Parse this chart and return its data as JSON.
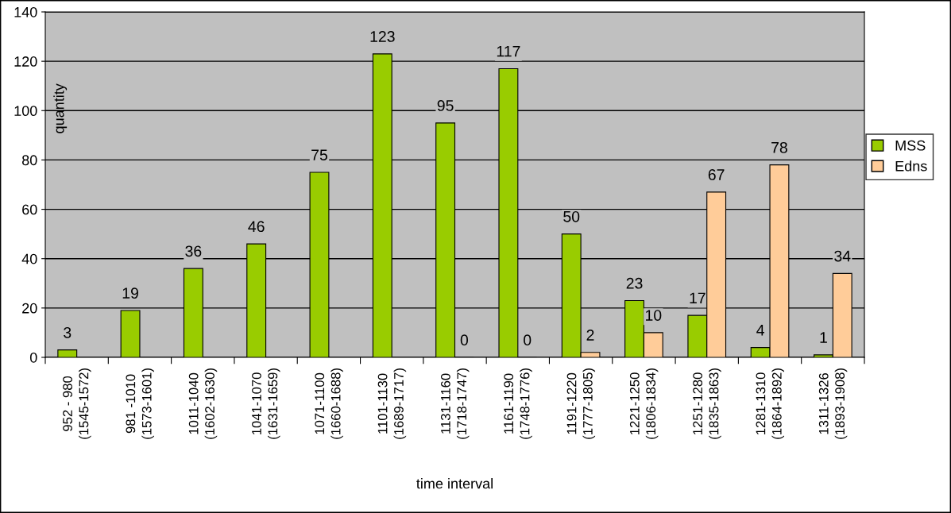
{
  "chart_data": {
    "type": "bar",
    "xlabel": "time interval",
    "ylabel": "quantity",
    "categories": [
      "952 - 980\n(1545-1572)",
      "981 -1010\n(1573-1601)",
      "1011-1040\n(1602-1630)",
      "1041-1070\n(1631-1659)",
      "1071-1100\n(1660-1688)",
      "1101-1130\n(1689-1717)",
      "1131-1160\n(1718-1747)",
      "1161-1190\n(1748-1776)",
      "1191-1220\n(1777-1805)",
      "1221-1250\n(1806-1834)",
      "1251-1280\n(1835-1863)",
      "1281-1310\n(1864-1892)",
      "1311-1326\n(1893-1908)"
    ],
    "series": [
      {
        "name": "MSS",
        "color": "#99cc00",
        "values": [
          3,
          19,
          36,
          46,
          75,
          123,
          95,
          117,
          50,
          23,
          17,
          4,
          1
        ]
      },
      {
        "name": "Edns",
        "color": "#ffcc99",
        "values": [
          null,
          null,
          null,
          null,
          null,
          null,
          0,
          0,
          2,
          10,
          67,
          78,
          34
        ]
      }
    ],
    "ylim": [
      0,
      140
    ],
    "yticks": [
      0,
      20,
      40,
      60,
      80,
      100,
      120,
      140
    ],
    "grid": "y",
    "legend": "right",
    "data_labels": true
  }
}
